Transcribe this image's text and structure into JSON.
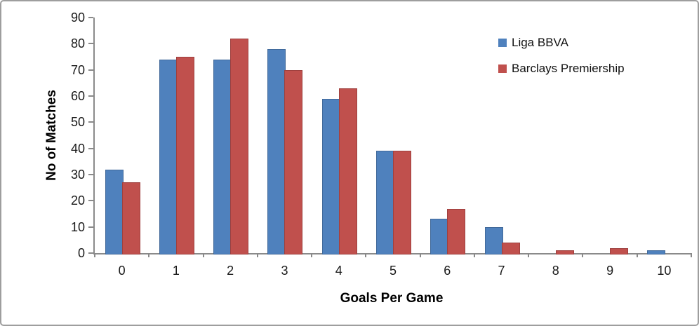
{
  "chart_data": {
    "type": "bar",
    "title": "",
    "xlabel": "Goals Per Game",
    "ylabel": "No of Matches",
    "categories": [
      "0",
      "1",
      "2",
      "3",
      "4",
      "5",
      "6",
      "7",
      "8",
      "9",
      "10"
    ],
    "series": [
      {
        "name": "Liga BBVA",
        "color": "#4F81BD",
        "values": [
          32,
          74,
          74,
          78,
          59,
          39,
          13,
          10,
          0,
          0,
          1
        ]
      },
      {
        "name": "Barclays Premiership",
        "color": "#C0504D",
        "values": [
          27,
          75,
          82,
          70,
          63,
          39,
          17,
          4,
          1,
          2,
          0
        ]
      }
    ],
    "y_axis": {
      "min": 0,
      "max": 90,
      "step": 10,
      "tick_labels": [
        "0",
        "10",
        "20",
        "30",
        "40",
        "50",
        "60",
        "70",
        "80",
        "90"
      ]
    },
    "x_axis": {
      "tick_labels": [
        "0",
        "1",
        "2",
        "3",
        "4",
        "5",
        "6",
        "7",
        "8",
        "9",
        "10"
      ]
    },
    "legend_position": "top-right",
    "grid": false,
    "colors": {
      "series_blue": "#4F81BD",
      "series_red": "#C0504D",
      "axis": "#8a8a8a",
      "background": "#ffffff",
      "frame_border": "#9e9e9e"
    }
  }
}
